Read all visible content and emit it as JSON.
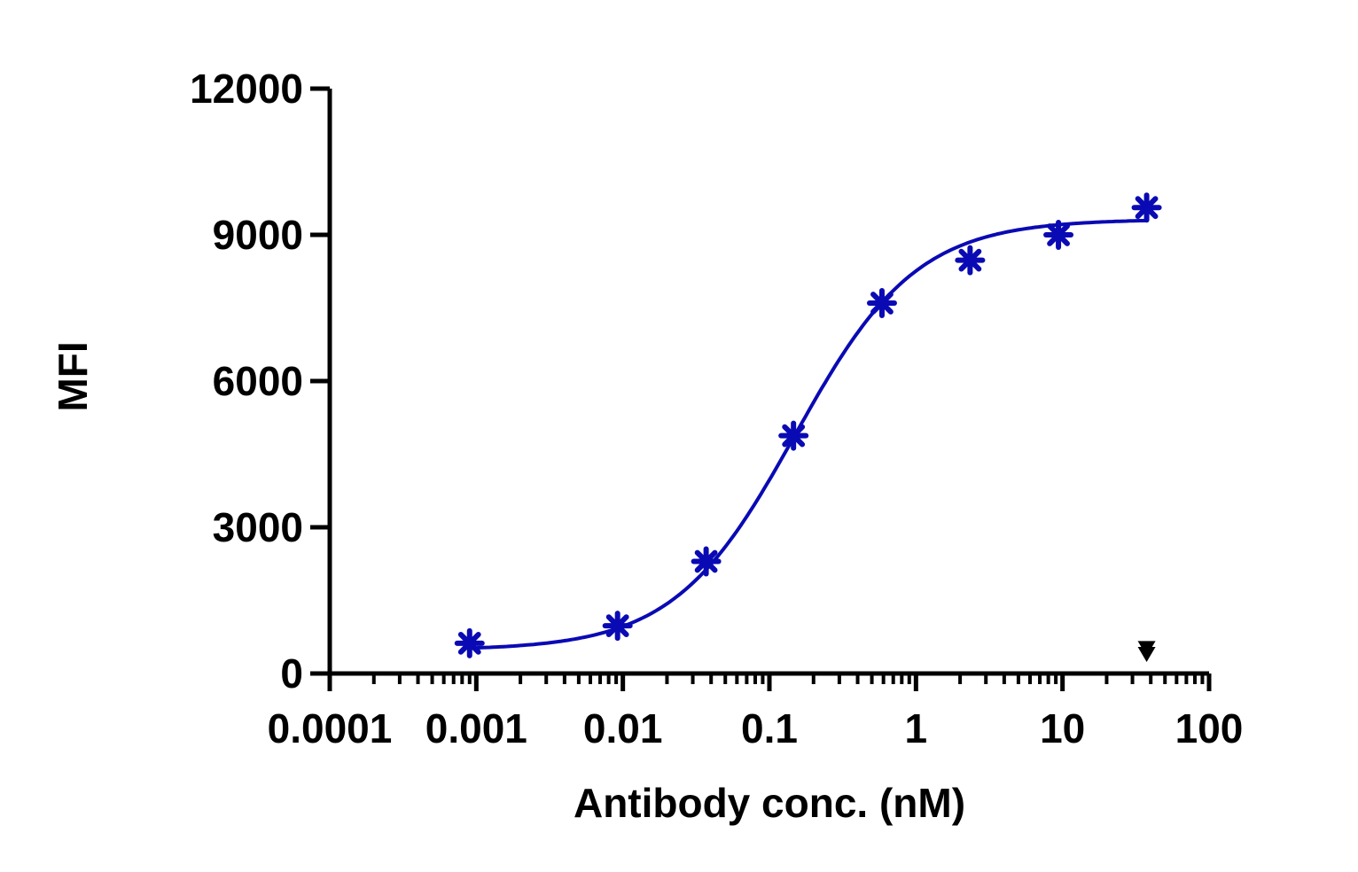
{
  "chart_data": {
    "type": "scatter",
    "title": "",
    "xlabel": "Antibody conc. (nM)",
    "ylabel": "MFI",
    "xscale": "log",
    "xlim": [
      0.0001,
      100
    ],
    "ylim": [
      0,
      12000
    ],
    "grid": false,
    "legend": "none",
    "x_ticks": [
      {
        "value": 0.0001,
        "label": "0.0001"
      },
      {
        "value": 0.001,
        "label": "0.001"
      },
      {
        "value": 0.01,
        "label": "0.01"
      },
      {
        "value": 0.1,
        "label": "0.1"
      },
      {
        "value": 1,
        "label": "1"
      },
      {
        "value": 10,
        "label": "10"
      },
      {
        "value": 100,
        "label": "100"
      }
    ],
    "y_ticks": [
      {
        "value": 0,
        "label": "0"
      },
      {
        "value": 3000,
        "label": "3000"
      },
      {
        "value": 6000,
        "label": "6000"
      },
      {
        "value": 9000,
        "label": "9000"
      },
      {
        "value": 12000,
        "label": "12000"
      }
    ],
    "series": [
      {
        "marker": "asterisk",
        "color": "#0a0ab4",
        "x": [
          0.0009,
          0.0092,
          0.037,
          0.146,
          0.586,
          2.34,
          9.38,
          37.5
        ],
        "y": [
          620,
          980,
          2300,
          4880,
          7600,
          8480,
          9000,
          9560
        ],
        "fit": {
          "model": "4PL",
          "bottom": 480,
          "top": 9320,
          "ec50": 0.15,
          "hill": 1.05
        }
      },
      {
        "marker": "triangle-down",
        "color": "#000000",
        "x": [
          37.5,
          37.5
        ],
        "y": [
          520,
          400
        ]
      }
    ]
  }
}
